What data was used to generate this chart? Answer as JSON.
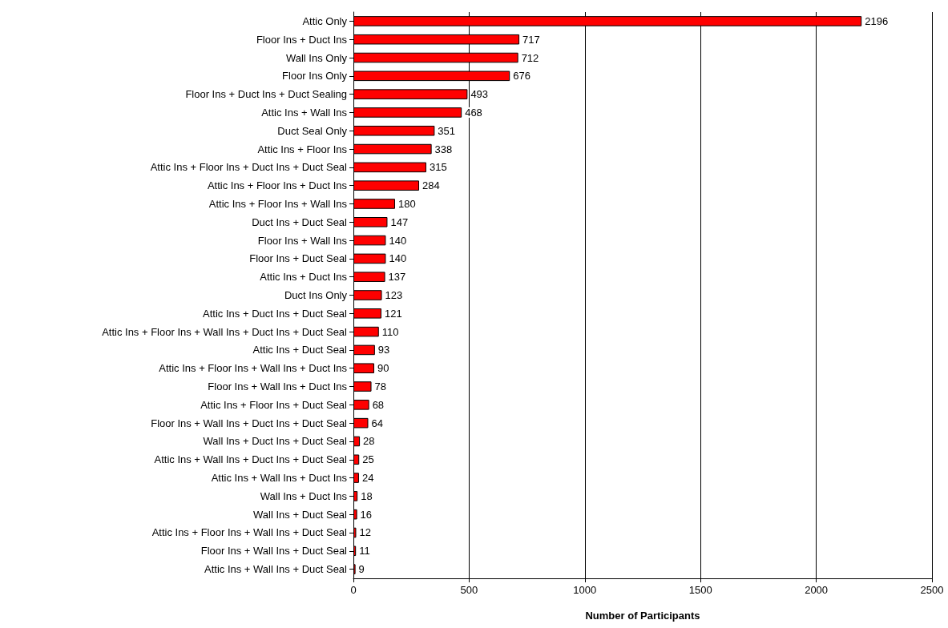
{
  "chart_data": {
    "type": "bar",
    "orientation": "horizontal",
    "xlabel": "Number of Participants",
    "categories": [
      "Attic Only",
      "Floor Ins + Duct Ins",
      "Wall Ins Only",
      "Floor Ins Only",
      "Floor Ins + Duct Ins + Duct Sealing",
      "Attic Ins + Wall Ins",
      "Duct Seal Only",
      "Attic Ins + Floor Ins",
      "Attic Ins + Floor Ins + Duct Ins + Duct Seal",
      "Attic Ins + Floor Ins + Duct Ins",
      "Attic Ins + Floor Ins + Wall Ins",
      "Duct Ins + Duct Seal",
      "Floor Ins + Wall Ins",
      "Floor Ins + Duct Seal",
      "Attic Ins + Duct Ins",
      "Duct Ins Only",
      "Attic Ins + Duct Ins + Duct Seal",
      "Attic Ins + Floor Ins + Wall Ins + Duct Ins + Duct Seal",
      "Attic Ins + Duct Seal",
      "Attic Ins + Floor Ins + Wall Ins + Duct Ins",
      "Floor Ins + Wall Ins + Duct Ins",
      "Attic Ins + Floor Ins + Duct Seal",
      "Floor Ins + Wall Ins + Duct Ins + Duct Seal",
      "Wall Ins + Duct Ins + Duct Seal",
      "Attic Ins + Wall Ins + Duct Ins + Duct Seal",
      "Attic Ins + Wall Ins + Duct Ins",
      "Wall Ins + Duct Ins",
      "Wall Ins + Duct Seal",
      "Attic Ins + Floor Ins + Wall Ins + Duct Seal",
      "Floor Ins + Wall Ins + Duct Seal",
      "Attic Ins + Wall Ins + Duct Seal"
    ],
    "values": [
      2196,
      717,
      712,
      676,
      493,
      468,
      351,
      338,
      315,
      284,
      180,
      147,
      140,
      140,
      137,
      123,
      121,
      110,
      93,
      90,
      78,
      68,
      64,
      28,
      25,
      24,
      18,
      16,
      12,
      11,
      9
    ],
    "color": "#ff0000",
    "xlim": [
      0,
      2500
    ],
    "xticks": [
      0,
      500,
      1000,
      1500,
      2000,
      2500
    ],
    "grid": "x",
    "data_labels": true
  }
}
